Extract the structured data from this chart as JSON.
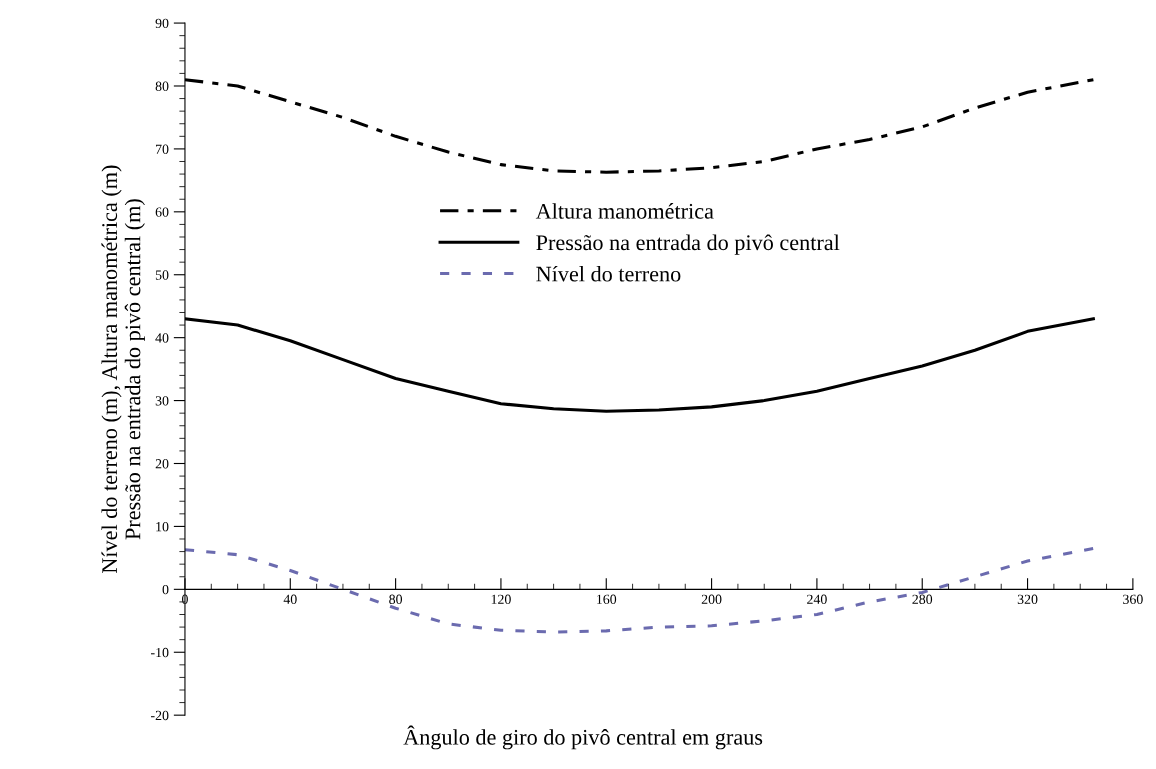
{
  "chart_data": {
    "type": "line",
    "xlabel": "Ângulo de giro do pivô central em graus",
    "ylabel": "Nível do terreno (m), Altura manométrica (m)\nPressão na entrada do pivô central (m)",
    "x": [
      0,
      20,
      40,
      60,
      80,
      100,
      120,
      140,
      160,
      180,
      200,
      220,
      240,
      260,
      280,
      300,
      320,
      345
    ],
    "series": [
      {
        "name": "Altura manométrica",
        "color": "#000000",
        "line_style": "dashdot",
        "values": [
          81,
          80,
          77.5,
          75,
          72,
          69.5,
          67.5,
          66.5,
          66.3,
          66.5,
          67,
          68,
          70,
          71.5,
          73.5,
          76.5,
          79,
          81
        ]
      },
      {
        "name": "Pressão na entrada do pivô central",
        "color": "#000000",
        "line_style": "solid",
        "values": [
          43,
          42,
          39.5,
          36.5,
          33.5,
          31.5,
          29.5,
          28.7,
          28.3,
          28.5,
          29,
          30,
          31.5,
          33.5,
          35.5,
          38,
          41,
          43
        ]
      },
      {
        "name": "Nível do terreno",
        "color": "#6b6baf",
        "line_style": "dashed",
        "values": [
          6.3,
          5.5,
          3,
          0,
          -3,
          -5.5,
          -6.5,
          -6.8,
          -6.6,
          -6,
          -5.8,
          -5,
          -4,
          -2,
          -0.5,
          2,
          4.5,
          6.5
        ]
      }
    ],
    "xlim": [
      0,
      360
    ],
    "xticks": [
      0,
      40,
      80,
      120,
      160,
      200,
      240,
      280,
      320,
      360
    ],
    "ylim": [
      -20,
      90
    ],
    "yticks": [
      -20,
      -10,
      0,
      10,
      20,
      30,
      40,
      50,
      60,
      70,
      80,
      90
    ],
    "legend": "center",
    "grid": false,
    "marker": "none"
  }
}
